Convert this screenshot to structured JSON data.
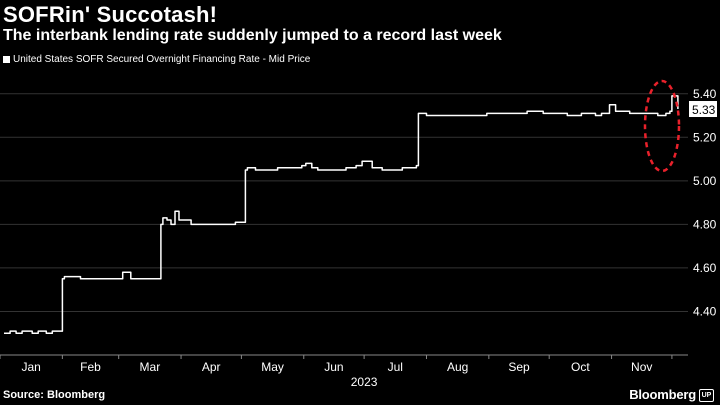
{
  "header": {
    "title": "SOFRin' Succotash!",
    "subtitle": "The interbank lending rate suddenly jumped to a record last week"
  },
  "footer": {
    "source": "Source: Bloomberg",
    "brand": "Bloomberg",
    "brand_mark": "UP"
  },
  "colors": {
    "background": "#000000",
    "line": "#ffffff",
    "grid": "#333333",
    "highlight_circle": "#e8212b"
  },
  "chart_data": {
    "type": "line",
    "title": "SOFRin' Succotash!",
    "subtitle": "The interbank lending rate suddenly jumped to a record last week",
    "legend_position": "top-left",
    "grid": true,
    "y_axis_side": "right",
    "xlabel": "2023",
    "ylabel": "",
    "ylim": [
      4.2,
      5.5
    ],
    "yticks": [
      "4.40",
      "4.60",
      "4.80",
      "5.00",
      "5.20",
      "5.40"
    ],
    "xticks": [
      "Jan",
      "Feb",
      "Mar",
      "Apr",
      "May",
      "Jun",
      "Jul",
      "Aug",
      "Sep",
      "Oct",
      "Nov"
    ],
    "last_value_label": "5.33",
    "annotation": "red dashed circle around the record jump",
    "series": [
      {
        "name": "United States SOFR Secured Overnight Financing Rate - Mid Price",
        "x": [
          "2023-01-03",
          "2023-01-06",
          "2023-01-09",
          "2023-01-12",
          "2023-01-17",
          "2023-01-20",
          "2023-01-24",
          "2023-01-27",
          "2023-01-31",
          "2023-02-01",
          "2023-02-02",
          "2023-02-10",
          "2023-02-20",
          "2023-02-28",
          "2023-03-01",
          "2023-03-03",
          "2023-03-07",
          "2023-03-09",
          "2023-03-15",
          "2023-03-22",
          "2023-03-23",
          "2023-03-25",
          "2023-03-27",
          "2023-03-29",
          "2023-03-31",
          "2023-04-04",
          "2023-04-06",
          "2023-04-12",
          "2023-04-25",
          "2023-04-28",
          "2023-05-02",
          "2023-05-03",
          "2023-05-04",
          "2023-05-08",
          "2023-05-12",
          "2023-05-16",
          "2023-05-19",
          "2023-05-25",
          "2023-05-31",
          "2023-06-02",
          "2023-06-05",
          "2023-06-08",
          "2023-06-15",
          "2023-06-22",
          "2023-06-27",
          "2023-06-29",
          "2023-06-30",
          "2023-07-05",
          "2023-07-10",
          "2023-07-20",
          "2023-07-26",
          "2023-07-27",
          "2023-07-28",
          "2023-08-01",
          "2023-08-15",
          "2023-08-25",
          "2023-08-31",
          "2023-09-05",
          "2023-09-15",
          "2023-09-20",
          "2023-09-28",
          "2023-10-02",
          "2023-10-10",
          "2023-10-17",
          "2023-10-24",
          "2023-10-27",
          "2023-10-31",
          "2023-11-03",
          "2023-11-10",
          "2023-11-17",
          "2023-11-24",
          "2023-11-28",
          "2023-11-30",
          "2023-12-01",
          "2023-12-04"
        ],
        "values": [
          4.3,
          4.31,
          4.3,
          4.31,
          4.3,
          4.31,
          4.3,
          4.31,
          4.31,
          4.55,
          4.56,
          4.55,
          4.55,
          4.55,
          4.55,
          4.58,
          4.55,
          4.55,
          4.55,
          4.8,
          4.83,
          4.82,
          4.8,
          4.86,
          4.82,
          4.82,
          4.8,
          4.8,
          4.8,
          4.81,
          4.81,
          5.05,
          5.06,
          5.05,
          5.05,
          5.05,
          5.06,
          5.06,
          5.07,
          5.08,
          5.06,
          5.05,
          5.05,
          5.06,
          5.07,
          5.07,
          5.09,
          5.06,
          5.05,
          5.06,
          5.06,
          5.07,
          5.31,
          5.3,
          5.3,
          5.3,
          5.31,
          5.31,
          5.31,
          5.32,
          5.31,
          5.31,
          5.3,
          5.31,
          5.3,
          5.31,
          5.35,
          5.32,
          5.31,
          5.31,
          5.3,
          5.31,
          5.32,
          5.39,
          5.33
        ]
      }
    ]
  }
}
